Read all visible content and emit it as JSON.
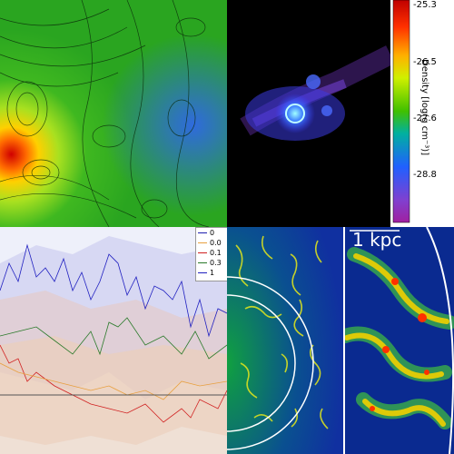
{
  "colorbar": {
    "ticks": [
      "-25.3",
      "-26.5",
      "-27.6",
      "-28.8"
    ],
    "label": "Density [log(g cm⁻³)]"
  },
  "legend": {
    "entries": [
      {
        "label": "0",
        "color": "#1f1faf"
      },
      {
        "label": "0.0",
        "color": "#e8a040"
      },
      {
        "label": "0.1",
        "color": "#d02020"
      },
      {
        "label": "0.3",
        "color": "#2a7a2a"
      },
      {
        "label": "1",
        "color": "#2020c0"
      }
    ]
  },
  "scale_bar": {
    "label": "1 kpc"
  }
}
